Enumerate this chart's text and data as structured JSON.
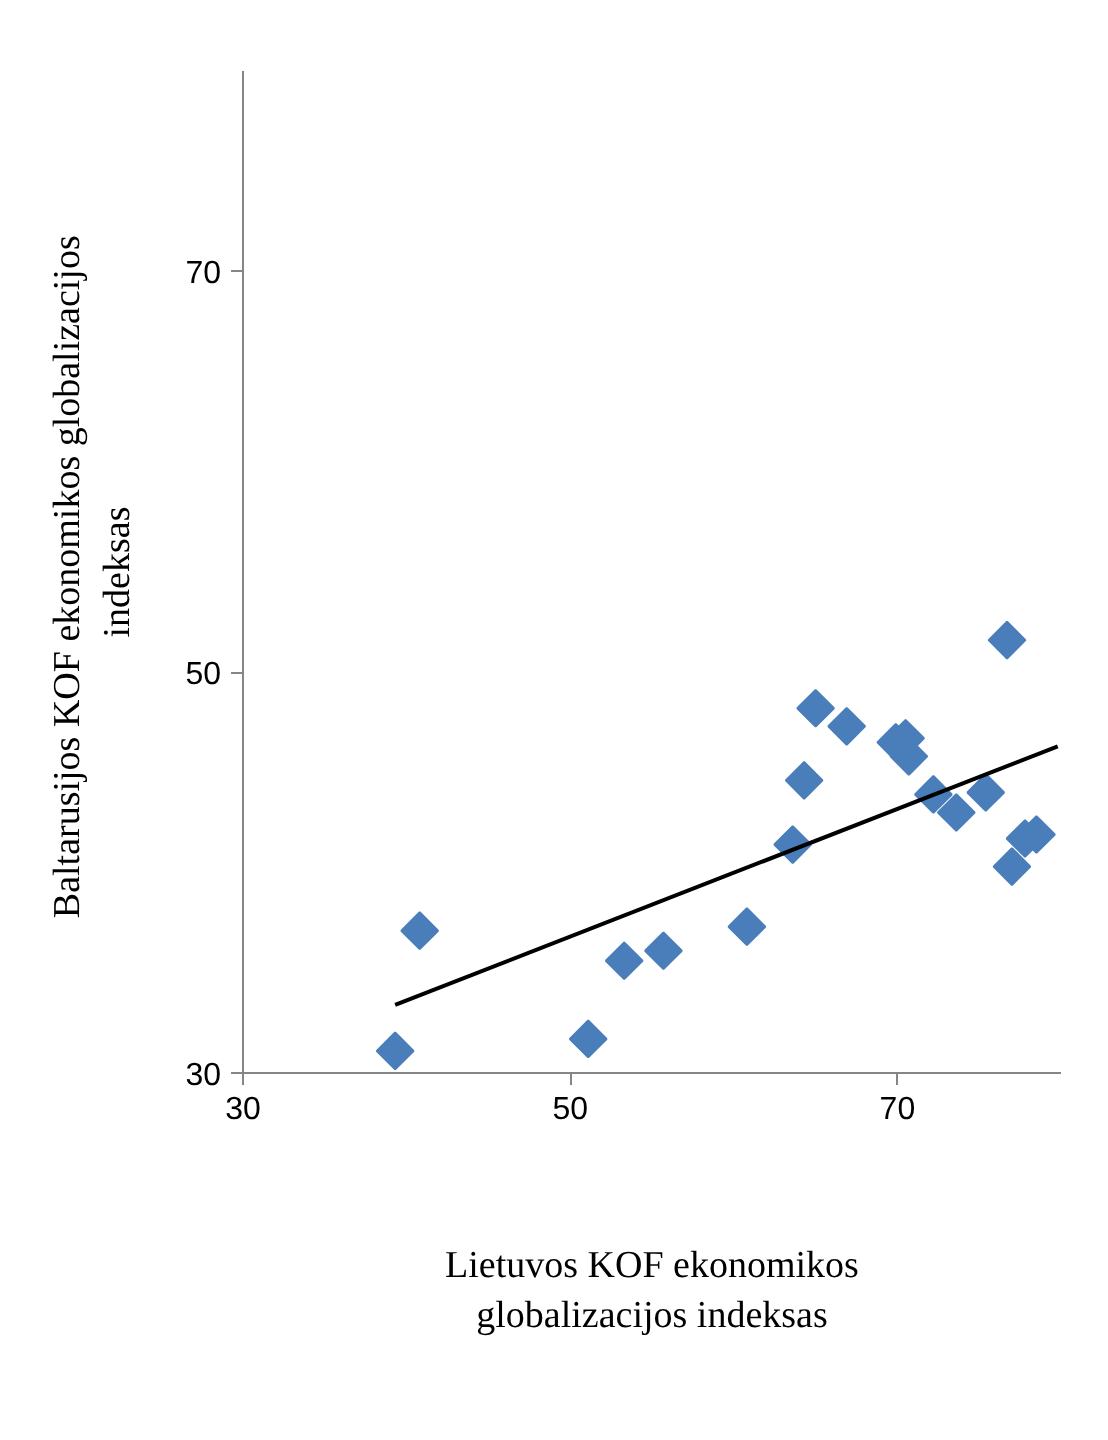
{
  "chart_data": {
    "type": "scatter",
    "xlabel": "Lietuvos KOF ekonomikos\nglobalizacijos indeksas",
    "ylabel": "Baltarusijos  KOF ekonomikos globalizacijos\nindeksas",
    "xlim": [
      30,
      80
    ],
    "ylim": [
      30,
      80
    ],
    "xticks": [
      30,
      50,
      70
    ],
    "yticks": [
      30,
      50,
      70
    ],
    "grid": false,
    "series": [
      {
        "marker": "diamond",
        "color": "#4a7ebb",
        "x": [
          39.3,
          40.8,
          51.1,
          53.3,
          55.7,
          60.8,
          63.6,
          64.3,
          65.0,
          66.9,
          69.9,
          70.5,
          70.7,
          72.2,
          73.6,
          75.4,
          76.7,
          77.0,
          77.8,
          78.5
        ],
        "values": [
          31.1,
          37.1,
          31.7,
          35.6,
          36.1,
          37.3,
          41.4,
          44.6,
          48.2,
          47.3,
          46.5,
          46.7,
          45.8,
          43.9,
          43.0,
          44.0,
          51.6,
          40.3,
          41.7,
          41.9
        ]
      },
      {
        "type": "line",
        "color": "#000000",
        "x": [
          39.3,
          79.8
        ],
        "values": [
          33.4,
          46.3
        ]
      }
    ]
  }
}
